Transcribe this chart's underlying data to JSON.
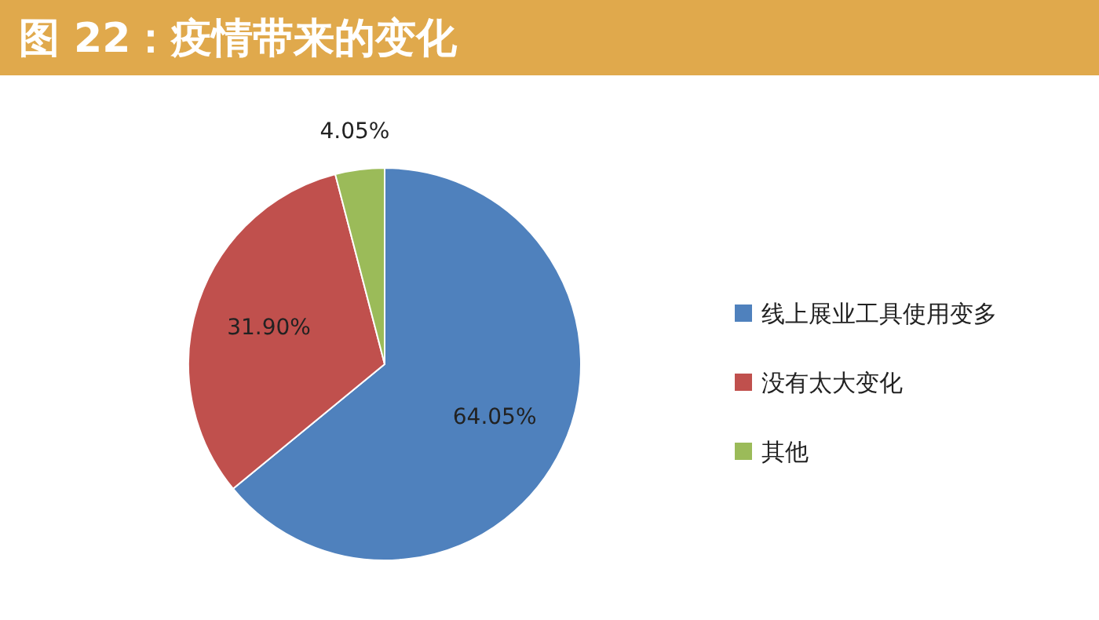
{
  "chart_data": {
    "type": "pie",
    "title": "图 22：疫情带来的变化",
    "categories": [
      "线上展业工具使用变多",
      "没有太大变化",
      "其他"
    ],
    "values": [
      64.05,
      31.9,
      4.05
    ],
    "colors": [
      "#4f81bd",
      "#c0504d",
      "#9bbb59"
    ],
    "value_labels": [
      "64.05%",
      "31.90%",
      "4.05%"
    ],
    "legend": "right"
  }
}
